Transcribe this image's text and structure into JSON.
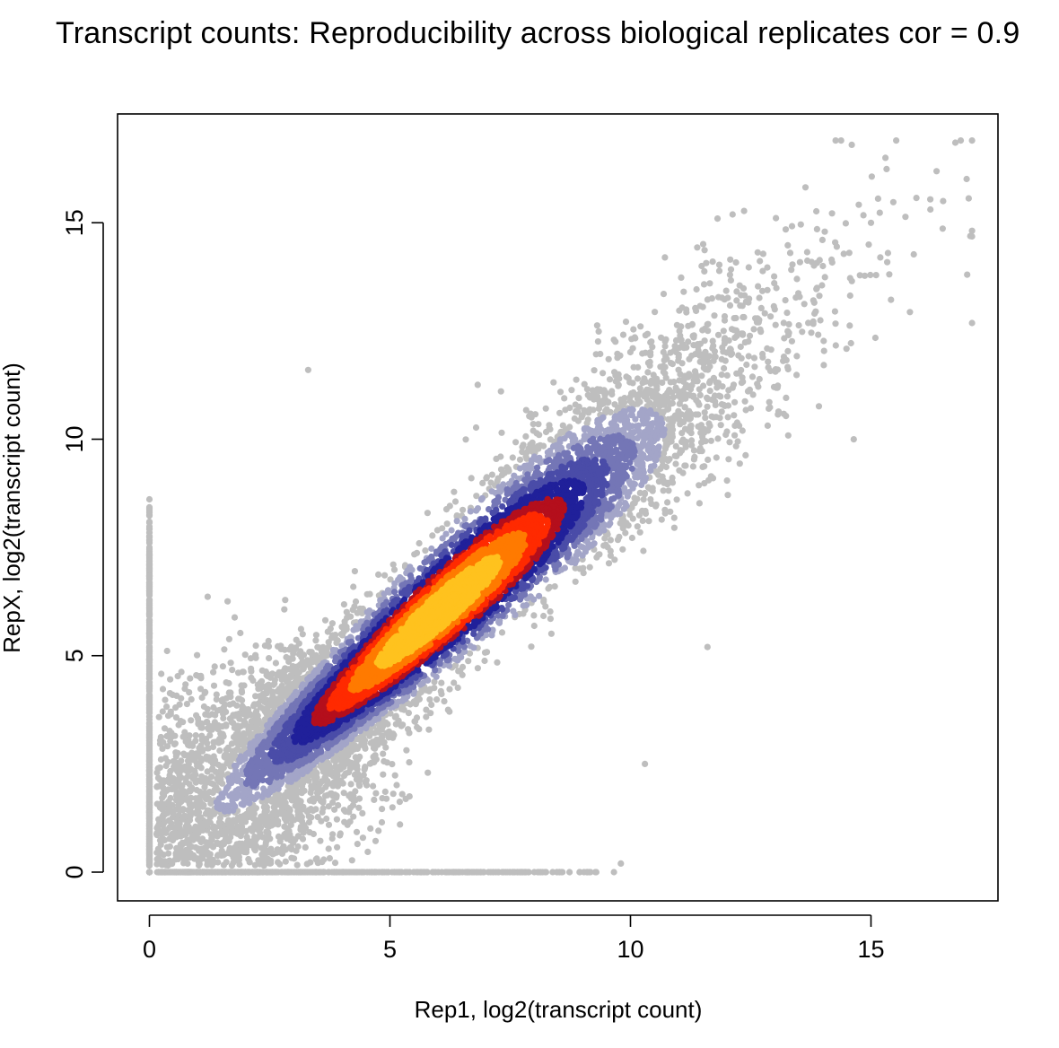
{
  "title": "Transcript counts: Reproducibility across biological replicates  cor =  0.9",
  "chart_data": {
    "type": "scatter",
    "title": "Transcript counts: Reproducibility across biological replicates  cor =  0.9",
    "xlabel": "Rep1, log2(transcript count)",
    "ylabel": "RepX, log2(transcript count)",
    "xlim": [
      -0.65,
      17.6
    ],
    "ylim": [
      -0.65,
      17.5
    ],
    "x_ticks": [
      0,
      5,
      10,
      15
    ],
    "y_ticks": [
      0,
      5,
      10,
      15
    ],
    "x_tick_labels": [
      "0",
      "5",
      "10",
      "15"
    ],
    "y_tick_labels": [
      "0",
      "5",
      "10",
      "15"
    ],
    "correlation": "0.9",
    "grid": false,
    "legend": "none",
    "density_coloring": true,
    "density_palette": [
      "#bebebe",
      "#a3a5c8",
      "#7476b6",
      "#4a4ca8",
      "#20209a",
      "#b40f1c",
      "#ff2a00",
      "#ff7a00",
      "#ffc21e"
    ],
    "sample_points": [
      {
        "x": 0.0,
        "y": 0.0
      },
      {
        "x": 0.0,
        "y": 2.5
      },
      {
        "x": 0.0,
        "y": 4.0
      },
      {
        "x": 1.0,
        "y": 1.5
      },
      {
        "x": 2.0,
        "y": 2.0
      },
      {
        "x": 3.0,
        "y": 3.0
      },
      {
        "x": 4.0,
        "y": 4.0
      },
      {
        "x": 5.0,
        "y": 5.0
      },
      {
        "x": 6.0,
        "y": 6.0
      },
      {
        "x": 7.0,
        "y": 7.0
      },
      {
        "x": 8.0,
        "y": 8.0
      },
      {
        "x": 9.0,
        "y": 8.8
      },
      {
        "x": 10.0,
        "y": 10.0
      },
      {
        "x": 11.0,
        "y": 11.0
      },
      {
        "x": 12.0,
        "y": 12.0
      },
      {
        "x": 13.0,
        "y": 13.0
      },
      {
        "x": 14.0,
        "y": 14.0
      },
      {
        "x": 15.0,
        "y": 15.0
      },
      {
        "x": 15.3,
        "y": 16.5
      },
      {
        "x": 16.5,
        "y": 15.5
      },
      {
        "x": 17.0,
        "y": 13.8
      },
      {
        "x": 14.6,
        "y": 16.8
      },
      {
        "x": 3.3,
        "y": 11.6
      },
      {
        "x": 8.0,
        "y": 0.0
      },
      {
        "x": 9.8,
        "y": 0.2
      },
      {
        "x": 10.3,
        "y": 2.5
      },
      {
        "x": 11.6,
        "y": 5.2
      }
    ]
  }
}
